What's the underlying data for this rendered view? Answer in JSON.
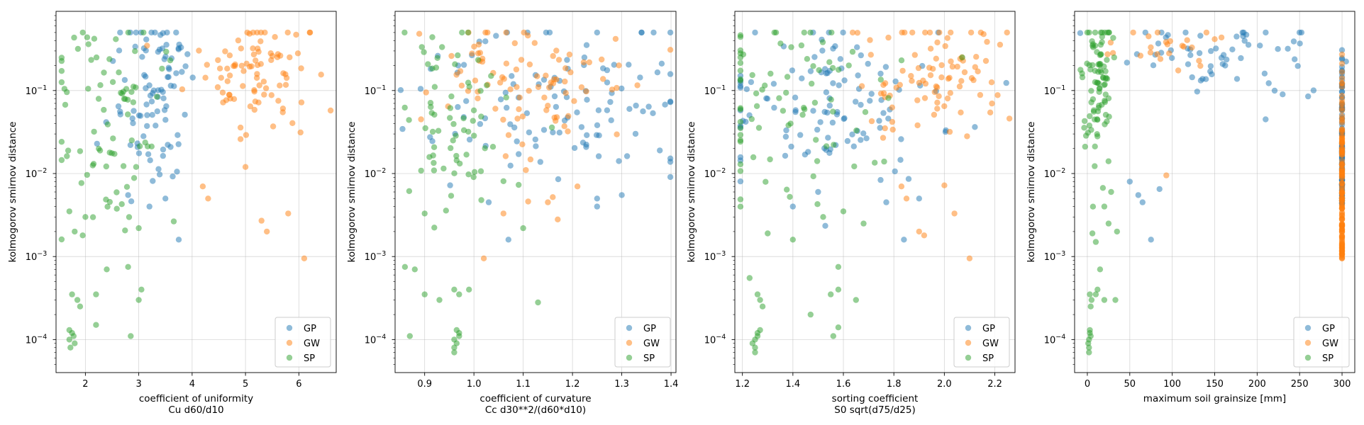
{
  "colors": {
    "GP": "#1f77b4",
    "GW": "#ff7f0e",
    "SP": "#2ca02c"
  },
  "chart_data": [
    {
      "type": "scatter",
      "xlabel": [
        "coefficient of uniformity",
        "Cu  d60/d10"
      ],
      "ylabel": "kolmogorov smirnov distance",
      "xlim": [
        1.45,
        6.7
      ],
      "ylim": [
        4e-05,
        0.9
      ],
      "yscale": "log",
      "grid": true,
      "legend": "lower-right",
      "xticks": [
        2,
        3,
        4,
        5,
        6
      ],
      "xtick_labels": [
        "2",
        "3",
        "4",
        "5",
        "6"
      ],
      "series": [
        {
          "name": "GP",
          "center": [
            3.3,
            0.09
          ],
          "spread": [
            0.35,
            0.5
          ],
          "n": 90,
          "extra": [
            [
              2.65,
              0.5
            ],
            [
              3.7,
              0.5
            ],
            [
              3.75,
              0.0016
            ],
            [
              3.5,
              0.005
            ],
            [
              2.8,
              0.0055
            ],
            [
              3.2,
              0.004
            ]
          ]
        },
        {
          "name": "GW",
          "center": [
            5.2,
            0.17
          ],
          "spread": [
            0.6,
            0.4
          ],
          "n": 90,
          "extra": [
            [
              6.1,
              0.00095
            ],
            [
              5.8,
              0.0033
            ],
            [
              5.4,
              0.002
            ],
            [
              5.3,
              0.0027
            ],
            [
              4.3,
              0.005
            ],
            [
              4.2,
              0.007
            ],
            [
              5.0,
              0.012
            ]
          ]
        },
        {
          "name": "SP",
          "center": [
            2.4,
            0.05
          ],
          "spread": [
            0.55,
            0.7
          ],
          "n": 80,
          "extra": [
            [
              1.7,
              0.0001
            ],
            [
              1.75,
              0.00012
            ],
            [
              1.8,
              9e-05
            ],
            [
              1.72,
              8e-05
            ],
            [
              1.78,
              0.00011
            ],
            [
              1.7,
              0.00013
            ],
            [
              1.85,
              0.0003
            ],
            [
              1.75,
              0.00035
            ],
            [
              1.9,
              0.00025
            ],
            [
              2.85,
              0.00011
            ],
            [
              2.8,
              0.00075
            ],
            [
              3.05,
              0.0004
            ],
            [
              3.0,
              0.0003
            ],
            [
              2.2,
              0.00035
            ],
            [
              2.4,
              0.0007
            ],
            [
              2.2,
              0.00015
            ],
            [
              1.95,
              0.0018
            ],
            [
              1.8,
              0.002
            ],
            [
              2.0,
              0.003
            ],
            [
              3.0,
              0.0022
            ],
            [
              1.7,
              0.0035
            ],
            [
              2.95,
              0.012
            ]
          ]
        }
      ]
    },
    {
      "type": "scatter",
      "xlabel": [
        "coefficient of curvature",
        "Cc  d30**2/(d60*d10)"
      ],
      "ylabel": "kolmogorov smirnov distance",
      "xlim": [
        0.84,
        1.41
      ],
      "ylim": [
        4e-05,
        0.9
      ],
      "yscale": "log",
      "grid": true,
      "legend": "lower-right",
      "xticks": [
        0.9,
        1.0,
        1.1,
        1.2,
        1.3,
        1.4
      ],
      "xtick_labels": [
        "0.9",
        "1.0",
        "1.1",
        "1.2",
        "1.3",
        "1.4"
      ],
      "series": [
        {
          "name": "GP",
          "center": [
            1.17,
            0.09
          ],
          "spread": [
            0.14,
            0.5
          ],
          "n": 110,
          "extra": [
            [
              1.25,
              0.5
            ],
            [
              1.34,
              0.5
            ],
            [
              1.07,
              0.0016
            ],
            [
              1.25,
              0.004
            ],
            [
              1.3,
              0.0055
            ],
            [
              1.03,
              0.0045
            ],
            [
              1.25,
              0.005
            ]
          ]
        },
        {
          "name": "GW",
          "center": [
            1.12,
            0.17
          ],
          "spread": [
            0.1,
            0.4
          ],
          "n": 90,
          "extra": [
            [
              1.02,
              0.00095
            ],
            [
              1.06,
              0.0033
            ],
            [
              1.11,
              0.0046
            ],
            [
              1.16,
              0.0052
            ],
            [
              1.17,
              0.0028
            ],
            [
              1.15,
              0.0045
            ],
            [
              1.21,
              0.007
            ]
          ]
        },
        {
          "name": "SP",
          "center": [
            0.96,
            0.06
          ],
          "spread": [
            0.05,
            0.7
          ],
          "n": 70,
          "extra": [
            [
              0.96,
              0.0001
            ],
            [
              0.97,
              0.00012
            ],
            [
              0.965,
              9e-05
            ],
            [
              0.96,
              8e-05
            ],
            [
              0.97,
              0.00011
            ],
            [
              0.96,
              7e-05
            ],
            [
              0.965,
              0.00013
            ],
            [
              0.9,
              0.00035
            ],
            [
              0.93,
              0.0003
            ],
            [
              0.96,
              0.0004
            ],
            [
              0.97,
              0.00035
            ],
            [
              0.99,
              0.0004
            ],
            [
              0.87,
              0.00011
            ],
            [
              0.86,
              0.00075
            ],
            [
              0.88,
              0.0007
            ],
            [
              1.13,
              0.00028
            ],
            [
              1.1,
              0.0022
            ],
            [
              0.9,
              0.0033
            ]
          ]
        }
      ]
    },
    {
      "type": "scatter",
      "xlabel": [
        "sorting coefficient",
        "S0 sqrt(d75/d25)"
      ],
      "ylabel": "kolmogorov smirnov distance",
      "xlim": [
        1.17,
        2.28
      ],
      "ylim": [
        4e-05,
        0.9
      ],
      "yscale": "log",
      "grid": true,
      "legend": "lower-right",
      "xticks": [
        1.2,
        1.4,
        1.6,
        1.8,
        2.0,
        2.2
      ],
      "xtick_labels": [
        "1.2",
        "1.4",
        "1.6",
        "1.8",
        "2.0",
        "2.2"
      ],
      "series": [
        {
          "name": "GP",
          "center": [
            1.55,
            0.07
          ],
          "spread": [
            0.25,
            0.5
          ],
          "n": 110,
          "extra": [
            [
              1.25,
              0.5
            ],
            [
              1.48,
              0.5
            ],
            [
              1.84,
              0.0016
            ],
            [
              1.9,
              0.005
            ],
            [
              1.4,
              0.004
            ],
            [
              1.5,
              0.006
            ],
            [
              1.77,
              0.0045
            ]
          ]
        },
        {
          "name": "GW",
          "center": [
            1.95,
            0.17
          ],
          "spread": [
            0.17,
            0.4
          ],
          "n": 90,
          "extra": [
            [
              2.1,
              0.00095
            ],
            [
              2.04,
              0.0033
            ],
            [
              1.9,
              0.002
            ],
            [
              1.92,
              0.0018
            ],
            [
              1.85,
              0.005
            ],
            [
              1.83,
              0.007
            ],
            [
              2.0,
              0.0072
            ]
          ]
        },
        {
          "name": "SP",
          "center": [
            1.4,
            0.08
          ],
          "spread": [
            0.22,
            0.65
          ],
          "n": 80,
          "extra": [
            [
              1.25,
              0.0001
            ],
            [
              1.26,
              0.00012
            ],
            [
              1.24,
              9e-05
            ],
            [
              1.25,
              8e-05
            ],
            [
              1.26,
              0.00011
            ],
            [
              1.25,
              7e-05
            ],
            [
              1.27,
              0.00013
            ],
            [
              1.27,
              0.0003
            ],
            [
              1.26,
              0.00035
            ],
            [
              1.28,
              0.00025
            ],
            [
              1.55,
              0.00035
            ],
            [
              1.58,
              0.00075
            ],
            [
              1.58,
              0.0004
            ],
            [
              1.47,
              0.0002
            ],
            [
              1.58,
              0.00014
            ],
            [
              1.56,
              0.00011
            ],
            [
              1.65,
              0.0003
            ],
            [
              1.3,
              0.0019
            ],
            [
              1.4,
              0.0016
            ],
            [
              1.52,
              0.003
            ],
            [
              1.6,
              0.0035
            ],
            [
              1.68,
              0.0025
            ]
          ]
        }
      ]
    },
    {
      "type": "scatter",
      "xlabel": [
        "maximum soil grainsize [mm]"
      ],
      "ylabel": "kolmogorov smirnov distance",
      "xlim": [
        -15,
        315
      ],
      "ylim": [
        4e-05,
        0.9
      ],
      "yscale": "log",
      "grid": true,
      "legend": "lower-right",
      "xticks": [
        0,
        50,
        100,
        150,
        200,
        250,
        300
      ],
      "xtick_labels": [
        "0",
        "50",
        "100",
        "150",
        "200",
        "250",
        "300"
      ],
      "series": [
        {
          "name": "GP",
          "center": [
            150,
            0.25
          ],
          "spread": [
            75,
            0.2
          ],
          "n": 60,
          "column": {
            "x": 300,
            "n": 120,
            "ymin": 0.004,
            "ymax": 0.5
          },
          "extra": [
            [
              75,
              0.0016
            ],
            [
              85,
              0.0065
            ],
            [
              65,
              0.0045
            ],
            [
              60,
              0.0055
            ],
            [
              50,
              0.008
            ],
            [
              210,
              0.045
            ],
            [
              230,
              0.09
            ],
            [
              260,
              0.085
            ]
          ]
        },
        {
          "name": "GW",
          "center": [
            100,
            0.3
          ],
          "spread": [
            45,
            0.15
          ],
          "n": 25,
          "column": {
            "x": 300,
            "n": 140,
            "ymin": 0.00095,
            "ymax": 0.4
          },
          "extra": [
            [
              93,
              0.0095
            ],
            [
              300,
              0.00095
            ],
            [
              300,
              0.0033
            ],
            [
              300,
              0.002
            ]
          ]
        },
        {
          "name": "SP",
          "center": [
            12,
            0.12
          ],
          "spread": [
            9,
            0.55
          ],
          "n": 90,
          "extra": [
            [
              2,
              0.0001
            ],
            [
              3,
              0.00012
            ],
            [
              1,
              9e-05
            ],
            [
              2,
              8e-05
            ],
            [
              4,
              0.00011
            ],
            [
              2,
              7e-05
            ],
            [
              3,
              0.00013
            ],
            [
              5,
              0.0003
            ],
            [
              3,
              0.00035
            ],
            [
              4,
              0.00025
            ],
            [
              10,
              0.00035
            ],
            [
              20,
              0.0003
            ],
            [
              15,
              0.0007
            ],
            [
              12,
              0.0004
            ],
            [
              33,
              0.0003
            ],
            [
              6,
              0.0019
            ],
            [
              10,
              0.0015
            ],
            [
              25,
              0.0025
            ],
            [
              35,
              0.002
            ],
            [
              20,
              0.004
            ],
            [
              28,
              0.006
            ]
          ]
        }
      ]
    }
  ]
}
